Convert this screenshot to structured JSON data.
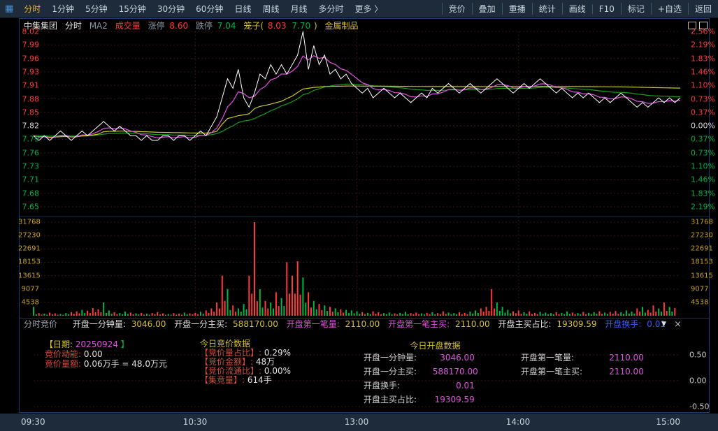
{
  "toolbar": {
    "left_items": [
      "分时",
      "1分钟",
      "5分钟",
      "15分钟",
      "30分钟",
      "60分钟",
      "日线",
      "周线",
      "月线",
      "多分时",
      "更多 〉"
    ],
    "active_item": "分时",
    "right_items": [
      "竞价",
      "叠加",
      "重播",
      "统计",
      "画线",
      "F10",
      "标记",
      "+自选",
      "返回"
    ]
  },
  "header": {
    "stock_name": "中集集团",
    "period": "分时",
    "ma_label": "MA2",
    "volume_label": "成交量",
    "limit_up_label": "涨停",
    "limit_up_value": "8.60",
    "limit_down_label": "跌停",
    "limit_down_value": "7.04",
    "cage_prefix": "笼子(",
    "cage_high": "8.03",
    "cage_low": "7.70",
    "cage_suffix": ")",
    "industry": "金属制品"
  },
  "price_axis": {
    "left": [
      "8.02",
      "7.99",
      "7.96",
      "7.93",
      "7.91",
      "7.88",
      "7.85",
      "7.82",
      "7.79",
      "7.76",
      "7.73",
      "7.71",
      "7.68",
      "7.65"
    ],
    "right": [
      "2.56%",
      "2.19%",
      "1.83%",
      "1.46%",
      "1.10%",
      "0.73%",
      "0.37%",
      "0.00%",
      "0.37%",
      "0.73%",
      "1.10%",
      "1.46%",
      "1.83%",
      "2.19%"
    ],
    "baseline_index": 7
  },
  "volume_axis": [
    "31768",
    "27230",
    "22691",
    "18153",
    "13615",
    "9077",
    "4538"
  ],
  "time_axis": [
    "09:30",
    "10:30",
    "13:00",
    "14:00",
    "15:00"
  ],
  "info_bar": {
    "title": "分时竞价",
    "pairs": [
      {
        "label": "开盘一分钟量:",
        "value": "3046.00"
      },
      {
        "label": "开盘一分主买:",
        "value": "588170.00"
      },
      {
        "label": "开盘第一笔量:",
        "value": "2110.00"
      },
      {
        "label": "开盘第一笔主买:",
        "value": "2110.00"
      },
      {
        "label": "开盘主买占比:",
        "value": "19309.59"
      },
      {
        "label": "开盘换手:",
        "value": "0.01"
      }
    ],
    "collapse_icon": "▼",
    "close_icon": "×"
  },
  "panel": {
    "left": {
      "date_prefix": "【日期:",
      "date": "20250924",
      "date_suffix": "】",
      "rows": [
        {
          "label": "竞价动能:",
          "value": "0.00"
        },
        {
          "label": "竞价量额:",
          "value": "0.06万手 = 48.0万元"
        }
      ]
    },
    "mid": {
      "title": "今日竞价数据",
      "rows": [
        {
          "label": "【竞价量占比】:",
          "value": "0.29%"
        },
        {
          "label": "【竞价金额】:",
          "value": "48万"
        },
        {
          "label": "【竞价流通比】:",
          "value": "0.00%"
        },
        {
          "label": "【集竞量】:",
          "value": "614手"
        }
      ]
    },
    "right": {
      "title": "今日开盘数据",
      "col1": [
        {
          "label": "开盘一分钟量:",
          "value": "3046.00"
        },
        {
          "label": "开盘一分主买:",
          "value": "588170.00"
        },
        {
          "label": "开盘换手:",
          "value": "0.01"
        },
        {
          "label": "开盘主买占比:",
          "value": "19309.59"
        }
      ],
      "col2": [
        {
          "label": "开盘第一笔量:",
          "value": "2110.00"
        },
        {
          "label": "开盘第一笔主买:",
          "value": "2110.00"
        }
      ]
    },
    "right_axis": [
      "0.50",
      "0.00",
      "-0.50"
    ]
  },
  "colors": {
    "up_red": "#ff3b3b",
    "down_green": "#00b04a",
    "volume_label_yellow": "#c9a21a",
    "accent_yellow": "#d8c22a",
    "magenta": "#e252e2",
    "blue": "#3a5bff",
    "frame_blue": "#173c6d",
    "toolbar_bg": "#1d2b3a"
  },
  "chart_data": {
    "type": "line",
    "subtype": "intraday-price-with-volume",
    "title": "中集集团 分时",
    "baseline_price": 7.82,
    "session_minutes": 240,
    "x_minutes_step": 2,
    "time_ticks": [
      "09:30",
      "10:30",
      "13:00",
      "14:00",
      "15:00"
    ],
    "price_axis_max": 8.02,
    "price_axis_min": 7.65,
    "pct_axis_max": 2.56,
    "pct_axis_min": -2.56,
    "volume_axis_max": 31768,
    "series_legend": [
      {
        "name": "price",
        "color": "#ffffff"
      },
      {
        "name": "MA-fast",
        "color": "#e252e2"
      },
      {
        "name": "均价",
        "color": "#c9c926"
      },
      {
        "name": "MA-slow",
        "color": "#18a018"
      }
    ],
    "price": [
      7.8,
      7.79,
      7.8,
      7.79,
      7.8,
      7.81,
      7.8,
      7.79,
      7.8,
      7.81,
      7.8,
      7.81,
      7.82,
      7.83,
      7.82,
      7.81,
      7.82,
      7.81,
      7.8,
      7.8,
      7.79,
      7.8,
      7.79,
      7.79,
      7.8,
      7.8,
      7.79,
      7.8,
      7.8,
      7.79,
      7.8,
      7.81,
      7.8,
      7.82,
      7.84,
      7.88,
      7.92,
      7.9,
      7.94,
      7.88,
      7.86,
      7.89,
      7.93,
      7.92,
      7.95,
      7.93,
      7.95,
      7.93,
      7.95,
      7.97,
      8.02,
      7.94,
      7.99,
      7.95,
      7.97,
      7.93,
      7.94,
      7.92,
      7.93,
      7.91,
      7.9,
      7.89,
      7.9,
      7.88,
      7.89,
      7.9,
      7.89,
      7.88,
      7.89,
      7.88,
      7.87,
      7.88,
      7.89,
      7.88,
      7.9,
      7.89,
      7.9,
      7.91,
      7.9,
      7.89,
      7.9,
      7.91,
      7.9,
      7.89,
      7.9,
      7.91,
      7.92,
      7.91,
      7.9,
      7.89,
      7.9,
      7.91,
      7.9,
      7.91,
      7.92,
      7.91,
      7.9,
      7.89,
      7.9,
      7.89,
      7.88,
      7.89,
      7.88,
      7.89,
      7.88,
      7.87,
      7.88,
      7.87,
      7.88,
      7.89,
      7.88,
      7.87,
      7.86,
      7.87,
      7.86,
      7.87,
      7.88,
      7.87,
      7.88,
      7.87,
      7.88
    ],
    "volume": [
      3046,
      900,
      700,
      1100,
      800,
      600,
      900,
      1200,
      1500,
      2000,
      1700,
      2600,
      2200,
      4500,
      1800,
      1200,
      900,
      1400,
      1100,
      800,
      1000,
      700,
      900,
      1200,
      800,
      600,
      900,
      700,
      1100,
      800,
      1000,
      1300,
      1800,
      2500,
      4500,
      13615,
      9077,
      3500,
      2500,
      4000,
      13615,
      31768,
      9000,
      5000,
      4500,
      8000,
      6000,
      18153,
      13615,
      18500,
      13000,
      8000,
      5000,
      4000,
      3500,
      3000,
      2500,
      2200,
      2000,
      1800,
      1500,
      1200,
      1000,
      1500,
      1200,
      900,
      1100,
      800,
      1000,
      1300,
      900,
      1100,
      800,
      1000,
      1200,
      900,
      1500,
      1100,
      900,
      1200,
      1000,
      1400,
      1800,
      2500,
      3000,
      9000,
      4500,
      3000,
      2000,
      1500,
      1800,
      1200,
      1500,
      1000,
      1300,
      1100,
      900,
      1200,
      1000,
      1400,
      1100,
      900,
      1300,
      1000,
      1200,
      1500,
      1100,
      1300,
      1600,
      1200,
      1800,
      1400,
      2500,
      3000,
      2000,
      3500,
      2500,
      4500,
      3000,
      2600
    ]
  }
}
